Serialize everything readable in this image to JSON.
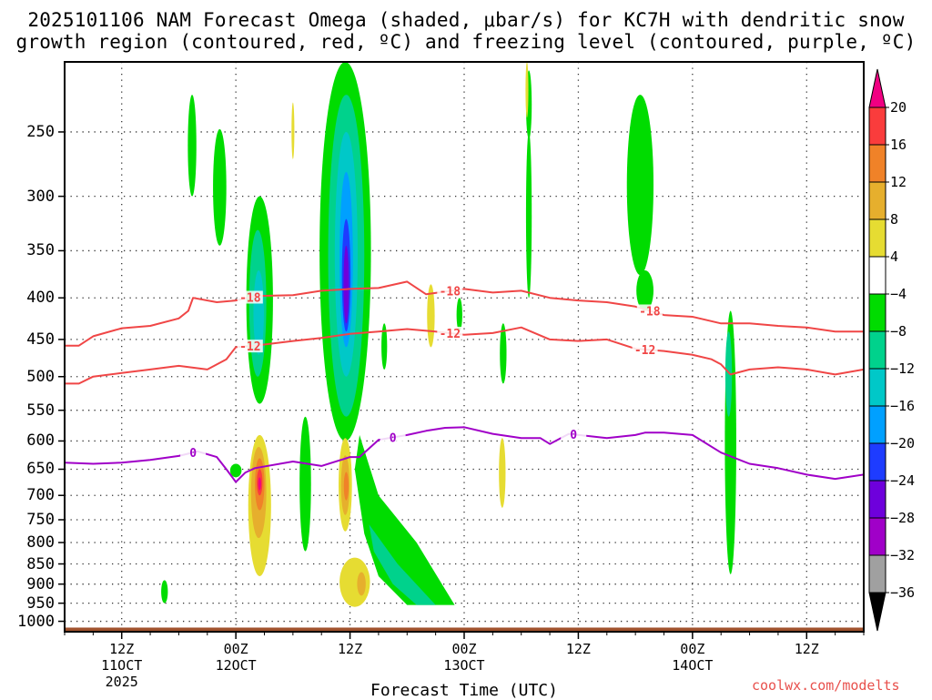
{
  "title_line1": "2025101106 NAM Forecast Omega (shaded, μbar/s) for KC7H with dendritic snow",
  "title_line2": "growth region (contoured, red, ºC) and freezing level (contoured, purple, ºC)",
  "credit": "coolwx.com/modelts",
  "chart_data": {
    "type": "heatmap",
    "title": "2025101106 NAM Forecast Omega (shaded, μbar/s) for KC7H with dendritic snow growth region (contoured, red, ºC) and freezing level (contoured, purple, ºC)",
    "xlabel": "Forecast Time (UTC)",
    "ylabel": "",
    "x_unit": "forecast hours from 2025-10-11 06Z",
    "xlim": [
      0,
      84
    ],
    "y_unit": "hPa (pressure, log scale, inverted)",
    "ylim": [
      1030,
      205
    ],
    "y_ticks": [
      250,
      300,
      350,
      400,
      450,
      500,
      550,
      600,
      650,
      700,
      750,
      800,
      850,
      900,
      950,
      1000
    ],
    "y_tick_labels": [
      "250",
      "300",
      "350",
      "400",
      "450",
      "500",
      "550",
      "600",
      "650",
      "700",
      "750",
      "800",
      "850",
      "900",
      "950",
      "1000"
    ],
    "x_ticks": [
      {
        "hour": 6,
        "lines": [
          "12Z",
          "11OCT",
          "2025"
        ]
      },
      {
        "hour": 18,
        "lines": [
          "00Z",
          "12OCT"
        ]
      },
      {
        "hour": 30,
        "lines": [
          "12Z"
        ]
      },
      {
        "hour": 42,
        "lines": [
          "00Z",
          "13OCT"
        ]
      },
      {
        "hour": 54,
        "lines": [
          "12Z"
        ]
      },
      {
        "hour": 66,
        "lines": [
          "00Z",
          "14OCT"
        ]
      },
      {
        "hour": 78,
        "lines": [
          "12Z"
        ]
      }
    ],
    "grid": true,
    "colorbar": {
      "levels": [
        -36,
        -32,
        -28,
        -24,
        -20,
        -16,
        -12,
        -8,
        -4,
        4,
        8,
        12,
        16,
        20
      ],
      "labels": [
        "20",
        "16",
        "12",
        "8",
        "4",
        "−4",
        "−8",
        "−12",
        "−16",
        "−20",
        "−24",
        "−28",
        "−32",
        "−36"
      ],
      "colors": [
        {
          "range": "<-36",
          "color": "#000000"
        },
        {
          "range": "-36..-32",
          "color": "#a0a0a0"
        },
        {
          "range": "-32..-28",
          "color": "#a000c8"
        },
        {
          "range": "-28..-24",
          "color": "#6e00dc"
        },
        {
          "range": "-24..-20",
          "color": "#1e3cff"
        },
        {
          "range": "-20..-16",
          "color": "#00a0ff"
        },
        {
          "range": "-16..-12",
          "color": "#00c8c8"
        },
        {
          "range": "-12..-8",
          "color": "#00d28c"
        },
        {
          "range": "-8..-4",
          "color": "#00dc00"
        },
        {
          "range": "-4..4",
          "color": "#ffffff"
        },
        {
          "range": "4..8",
          "color": "#e6dc32"
        },
        {
          "range": "8..12",
          "color": "#e6af2d"
        },
        {
          "range": "12..16",
          "color": "#f08228"
        },
        {
          "range": "16..20",
          "color": "#fa3c3c"
        },
        {
          "range": ">20",
          "color": "#f00082"
        }
      ]
    },
    "contour_labels": {
      "dgz_minus18": "-18",
      "dgz_minus12": "-12",
      "freezing": "0"
    },
    "series": [
      {
        "name": "-18 ºC isotherm (DGZ top)",
        "color": "#f04646",
        "width": 2,
        "hour": [
          0,
          1.5,
          3,
          6,
          9,
          12,
          13,
          13.5,
          16,
          18,
          20,
          24,
          27,
          30,
          33,
          36,
          38,
          40,
          42,
          45,
          48,
          51,
          54,
          57,
          60,
          63,
          66,
          69,
          72,
          75,
          78,
          81,
          84
        ],
        "hPa": [
          458,
          458,
          446,
          436,
          433,
          424,
          415,
          400,
          405,
          403,
          398,
          397,
          392,
          390,
          389,
          382,
          396,
          393,
          390,
          394,
          392,
          400,
          403,
          405,
          410,
          420,
          422,
          430,
          430,
          433,
          435,
          440,
          440
        ]
      },
      {
        "name": "-12 ºC isotherm (DGZ bottom)",
        "color": "#f04646",
        "width": 2,
        "hour": [
          0,
          1.5,
          3,
          6,
          9,
          12,
          15,
          17,
          18,
          20,
          24,
          27,
          30,
          33,
          36,
          39,
          42,
          45,
          48,
          51,
          54,
          57,
          60,
          63,
          66,
          68,
          69,
          70,
          72,
          75,
          78,
          81,
          84
        ],
        "hPa": [
          510,
          510,
          500,
          495,
          490,
          485,
          490,
          476,
          460,
          458,
          452,
          448,
          443,
          440,
          437,
          440,
          444,
          442,
          435,
          450,
          452,
          450,
          462,
          465,
          470,
          476,
          483,
          497,
          490,
          487,
          490,
          497,
          490
        ]
      },
      {
        "name": "0 ºC isotherm (freezing level)",
        "color": "#a000c8",
        "width": 2,
        "hour": [
          0,
          3,
          6,
          9,
          12,
          14,
          16,
          17,
          18,
          19,
          20,
          24,
          27,
          30,
          31,
          33,
          36,
          38,
          40,
          42,
          45,
          48,
          50,
          51,
          53,
          57,
          60,
          61,
          63,
          66,
          69,
          72,
          75,
          78,
          81,
          84
        ],
        "hPa": [
          638,
          640,
          638,
          633,
          626,
          618,
          628,
          650,
          674,
          656,
          648,
          636,
          644,
          628,
          628,
          598,
          590,
          583,
          578,
          577,
          588,
          595,
          595,
          605,
          588,
          595,
          590,
          586,
          586,
          590,
          620,
          640,
          648,
          660,
          668,
          660
        ]
      }
    ],
    "omega_features": [
      {
        "sign": "upward",
        "hour_center": 29.5,
        "p_top": 205,
        "p_bottom": 640,
        "min_value": -30,
        "note": "strongest ascent ~350-450 hPa near 12Z 12OCT"
      },
      {
        "sign": "upward",
        "hour_center": 20.5,
        "p_top": 300,
        "p_bottom": 540,
        "min_value": -14
      },
      {
        "sign": "upward",
        "hour_center": 35,
        "p_top": 700,
        "p_bottom": 955,
        "min_value": -12,
        "note": "low-level ascent sloping toward 00Z 13OCT"
      },
      {
        "sign": "upward",
        "hour_center": 60.5,
        "p_top": 225,
        "p_bottom": 415,
        "min_value": -8
      },
      {
        "sign": "upward",
        "hour_center": 70,
        "p_top": 415,
        "p_bottom": 875,
        "min_value": -9
      },
      {
        "sign": "downward",
        "hour_center": 20.5,
        "p_top": 590,
        "p_bottom": 880,
        "max_value": 22,
        "note": "strongest subsidence ~650-700 hPa"
      },
      {
        "sign": "downward",
        "hour_center": 29.5,
        "p_top": 595,
        "p_bottom": 775,
        "max_value": 16
      },
      {
        "sign": "downward",
        "hour_center": 30.5,
        "p_top": 835,
        "p_bottom": 960,
        "max_value": 12
      }
    ],
    "terrain_surface_hPa": 1018
  }
}
